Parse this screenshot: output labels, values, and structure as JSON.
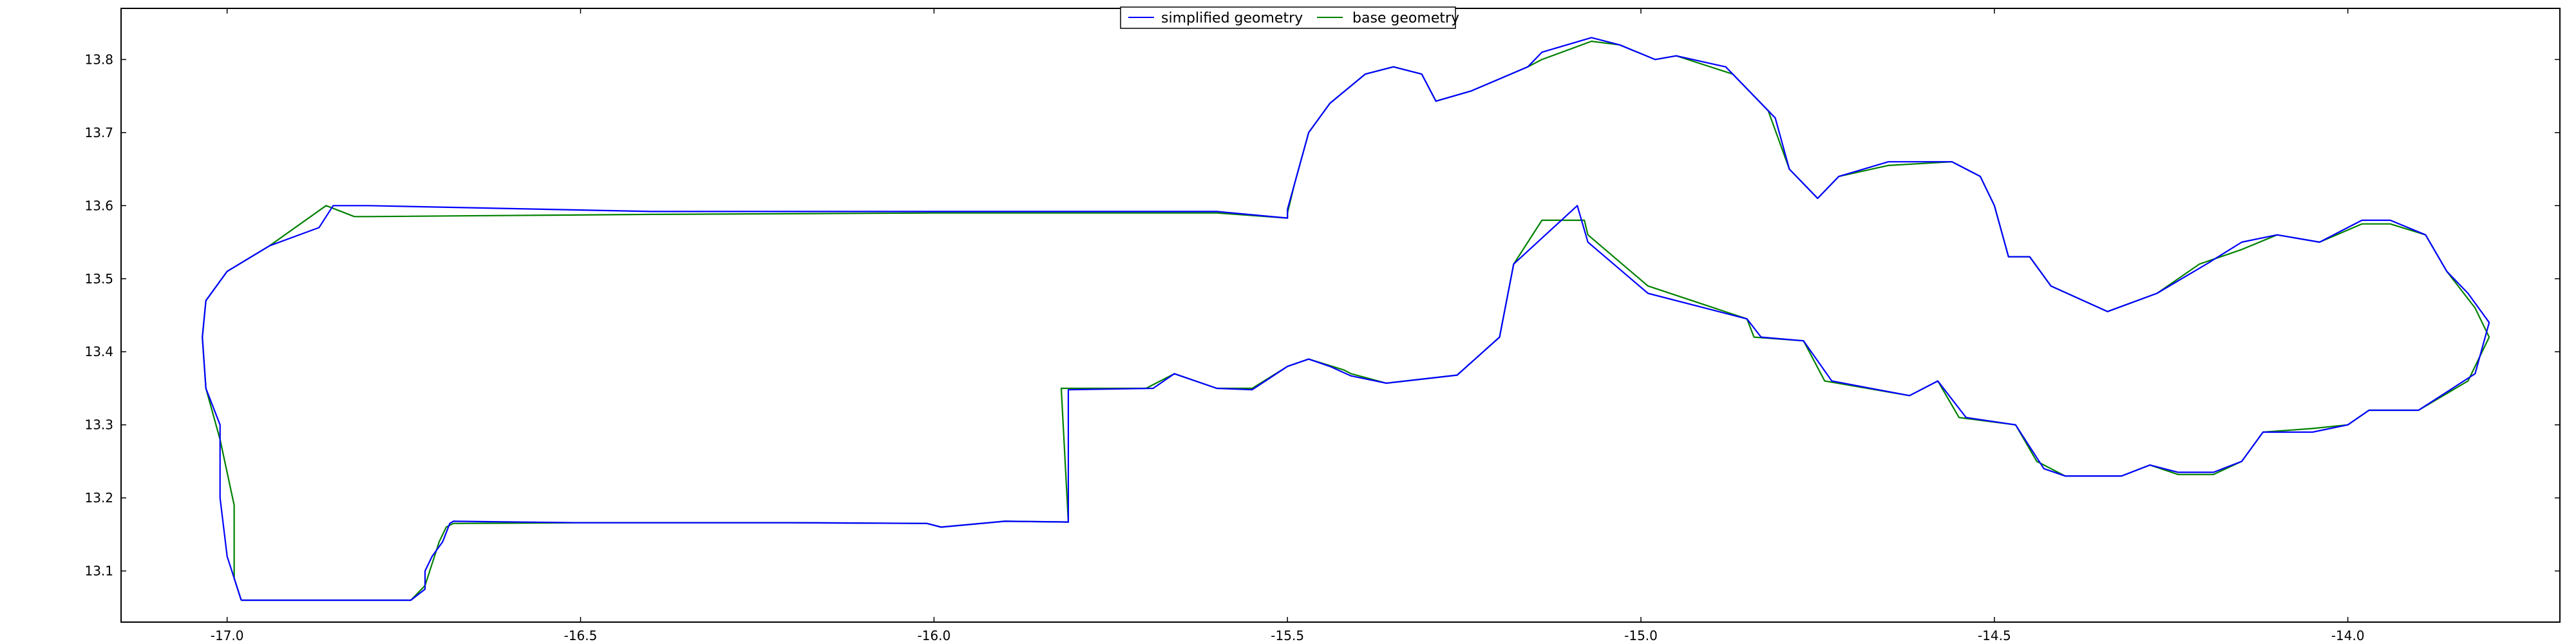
{
  "chart_data": {
    "type": "line",
    "title": "",
    "xlabel": "",
    "ylabel": "",
    "xlim": [
      -17.15,
      -13.7
    ],
    "ylim": [
      13.03,
      13.87
    ],
    "x_ticks": [
      -17.0,
      -16.5,
      -16.0,
      -15.5,
      -15.0,
      -14.5,
      -14.0
    ],
    "x_tick_labels": [
      "-17.0",
      "-16.5",
      "-16.0",
      "-15.5",
      "-15.0",
      "-14.5",
      "-14.0"
    ],
    "y_ticks": [
      13.1,
      13.2,
      13.3,
      13.4,
      13.5,
      13.6,
      13.7,
      13.8
    ],
    "y_tick_labels": [
      "13.1",
      "13.2",
      "13.3",
      "13.4",
      "13.5",
      "13.6",
      "13.7",
      "13.8"
    ],
    "grid": false,
    "legend_position": "top-center",
    "series": [
      {
        "name": "simplified geometry",
        "color": "#0000ff",
        "points": [
          [
            -16.98,
            13.06
          ],
          [
            -16.74,
            13.06
          ],
          [
            -16.72,
            13.075
          ],
          [
            -16.72,
            13.1
          ],
          [
            -16.71,
            13.12
          ],
          [
            -16.695,
            13.14
          ],
          [
            -16.685,
            13.165
          ],
          [
            -16.68,
            13.168
          ],
          [
            -16.5,
            13.166
          ],
          [
            -16.2,
            13.166
          ],
          [
            -16.01,
            13.165
          ],
          [
            -15.99,
            13.16
          ],
          [
            -15.9,
            13.168
          ],
          [
            -15.81,
            13.167
          ],
          [
            -15.81,
            13.348
          ],
          [
            -15.69,
            13.35
          ],
          [
            -15.66,
            13.37
          ],
          [
            -15.6,
            13.35
          ],
          [
            -15.55,
            13.348
          ],
          [
            -15.5,
            13.38
          ],
          [
            -15.47,
            13.39
          ],
          [
            -15.44,
            13.38
          ],
          [
            -15.41,
            13.367
          ],
          [
            -15.36,
            13.357
          ],
          [
            -15.26,
            13.368
          ],
          [
            -15.2,
            13.42
          ],
          [
            -15.18,
            13.52
          ],
          [
            -15.09,
            13.6
          ],
          [
            -15.075,
            13.55
          ],
          [
            -14.99,
            13.48
          ],
          [
            -14.85,
            13.445
          ],
          [
            -14.83,
            13.42
          ],
          [
            -14.77,
            13.415
          ],
          [
            -14.73,
            13.36
          ],
          [
            -14.62,
            13.34
          ],
          [
            -14.58,
            13.36
          ],
          [
            -14.54,
            13.31
          ],
          [
            -14.47,
            13.3
          ],
          [
            -14.43,
            13.24
          ],
          [
            -14.4,
            13.23
          ],
          [
            -14.32,
            13.23
          ],
          [
            -14.28,
            13.245
          ],
          [
            -14.24,
            13.235
          ],
          [
            -14.19,
            13.235
          ],
          [
            -14.15,
            13.25
          ],
          [
            -14.12,
            13.29
          ],
          [
            -14.05,
            13.29
          ],
          [
            -14.0,
            13.3
          ],
          [
            -13.97,
            13.32
          ],
          [
            -13.9,
            13.32
          ],
          [
            -13.82,
            13.37
          ],
          [
            -13.8,
            13.44
          ],
          [
            -13.83,
            13.48
          ],
          [
            -13.86,
            13.51
          ],
          [
            -13.89,
            13.56
          ],
          [
            -13.94,
            13.58
          ],
          [
            -13.98,
            13.58
          ],
          [
            -14.04,
            13.55
          ],
          [
            -14.1,
            13.56
          ],
          [
            -14.15,
            13.55
          ],
          [
            -14.2,
            13.52
          ],
          [
            -14.27,
            13.48
          ],
          [
            -14.34,
            13.455
          ],
          [
            -14.42,
            13.49
          ],
          [
            -14.45,
            13.53
          ],
          [
            -14.48,
            13.53
          ],
          [
            -14.5,
            13.6
          ],
          [
            -14.52,
            13.64
          ],
          [
            -14.56,
            13.66
          ],
          [
            -14.65,
            13.66
          ],
          [
            -14.72,
            13.64
          ],
          [
            -14.75,
            13.61
          ],
          [
            -14.79,
            13.65
          ],
          [
            -14.81,
            13.72
          ],
          [
            -14.88,
            13.79
          ],
          [
            -14.95,
            13.805
          ],
          [
            -14.98,
            13.8
          ],
          [
            -15.03,
            13.82
          ],
          [
            -15.07,
            13.83
          ],
          [
            -15.14,
            13.81
          ],
          [
            -15.16,
            13.79
          ],
          [
            -15.24,
            13.757
          ],
          [
            -15.29,
            13.743
          ],
          [
            -15.31,
            13.78
          ],
          [
            -15.35,
            13.79
          ],
          [
            -15.39,
            13.78
          ],
          [
            -15.44,
            13.74
          ],
          [
            -15.47,
            13.7
          ],
          [
            -15.49,
            13.63
          ],
          [
            -15.5,
            13.595
          ],
          [
            -15.5,
            13.583
          ],
          [
            -15.6,
            13.592
          ],
          [
            -16.0,
            13.592
          ],
          [
            -16.4,
            13.592
          ],
          [
            -16.8,
            13.6
          ],
          [
            -16.85,
            13.6
          ],
          [
            -16.87,
            13.57
          ],
          [
            -16.94,
            13.545
          ],
          [
            -17.0,
            13.51
          ],
          [
            -17.03,
            13.47
          ],
          [
            -17.035,
            13.42
          ],
          [
            -17.03,
            13.35
          ],
          [
            -17.01,
            13.3
          ],
          [
            -17.01,
            13.2
          ],
          [
            -17.0,
            13.12
          ],
          [
            -16.98,
            13.06
          ]
        ]
      },
      {
        "name": "base geometry",
        "color": "#008000",
        "points": [
          [
            -16.98,
            13.06
          ],
          [
            -16.74,
            13.06
          ],
          [
            -16.72,
            13.08
          ],
          [
            -16.71,
            13.11
          ],
          [
            -16.7,
            13.14
          ],
          [
            -16.69,
            13.16
          ],
          [
            -16.68,
            13.165
          ],
          [
            -16.5,
            13.166
          ],
          [
            -16.2,
            13.166
          ],
          [
            -16.01,
            13.165
          ],
          [
            -15.99,
            13.16
          ],
          [
            -15.9,
            13.168
          ],
          [
            -15.81,
            13.167
          ],
          [
            -15.82,
            13.35
          ],
          [
            -15.7,
            13.35
          ],
          [
            -15.66,
            13.37
          ],
          [
            -15.6,
            13.35
          ],
          [
            -15.55,
            13.35
          ],
          [
            -15.5,
            13.38
          ],
          [
            -15.47,
            13.39
          ],
          [
            -15.42,
            13.375
          ],
          [
            -15.41,
            13.37
          ],
          [
            -15.36,
            13.357
          ],
          [
            -15.26,
            13.368
          ],
          [
            -15.2,
            13.42
          ],
          [
            -15.18,
            13.52
          ],
          [
            -15.14,
            13.58
          ],
          [
            -15.08,
            13.58
          ],
          [
            -15.075,
            13.56
          ],
          [
            -14.99,
            13.49
          ],
          [
            -14.85,
            13.445
          ],
          [
            -14.84,
            13.42
          ],
          [
            -14.77,
            13.415
          ],
          [
            -14.74,
            13.36
          ],
          [
            -14.62,
            13.34
          ],
          [
            -14.58,
            13.36
          ],
          [
            -14.55,
            13.31
          ],
          [
            -14.47,
            13.3
          ],
          [
            -14.44,
            13.25
          ],
          [
            -14.4,
            13.23
          ],
          [
            -14.32,
            13.23
          ],
          [
            -14.28,
            13.245
          ],
          [
            -14.24,
            13.232
          ],
          [
            -14.19,
            13.232
          ],
          [
            -14.15,
            13.25
          ],
          [
            -14.12,
            13.29
          ],
          [
            -14.05,
            13.295
          ],
          [
            -14.0,
            13.3
          ],
          [
            -13.97,
            13.32
          ],
          [
            -13.9,
            13.32
          ],
          [
            -13.83,
            13.36
          ],
          [
            -13.8,
            13.42
          ],
          [
            -13.82,
            13.46
          ],
          [
            -13.86,
            13.51
          ],
          [
            -13.89,
            13.56
          ],
          [
            -13.94,
            13.575
          ],
          [
            -13.98,
            13.575
          ],
          [
            -14.04,
            13.55
          ],
          [
            -14.1,
            13.56
          ],
          [
            -14.15,
            13.54
          ],
          [
            -14.21,
            13.52
          ],
          [
            -14.27,
            13.48
          ],
          [
            -14.34,
            13.455
          ],
          [
            -14.42,
            13.49
          ],
          [
            -14.45,
            13.53
          ],
          [
            -14.48,
            13.53
          ],
          [
            -14.5,
            13.6
          ],
          [
            -14.52,
            13.64
          ],
          [
            -14.56,
            13.66
          ],
          [
            -14.65,
            13.655
          ],
          [
            -14.72,
            13.64
          ],
          [
            -14.75,
            13.61
          ],
          [
            -14.79,
            13.65
          ],
          [
            -14.82,
            13.73
          ],
          [
            -14.87,
            13.78
          ],
          [
            -14.95,
            13.805
          ],
          [
            -14.98,
            13.8
          ],
          [
            -15.03,
            13.82
          ],
          [
            -15.07,
            13.825
          ],
          [
            -15.14,
            13.8
          ],
          [
            -15.16,
            13.79
          ],
          [
            -15.24,
            13.757
          ],
          [
            -15.29,
            13.743
          ],
          [
            -15.31,
            13.78
          ],
          [
            -15.35,
            13.79
          ],
          [
            -15.39,
            13.78
          ],
          [
            -15.44,
            13.74
          ],
          [
            -15.47,
            13.7
          ],
          [
            -15.49,
            13.63
          ],
          [
            -15.5,
            13.59
          ],
          [
            -15.5,
            13.583
          ],
          [
            -15.6,
            13.59
          ],
          [
            -16.0,
            13.59
          ],
          [
            -16.4,
            13.588
          ],
          [
            -16.8,
            13.585
          ],
          [
            -16.82,
            13.585
          ],
          [
            -16.86,
            13.6
          ],
          [
            -16.94,
            13.545
          ],
          [
            -17.0,
            13.51
          ],
          [
            -17.03,
            13.47
          ],
          [
            -17.035,
            13.42
          ],
          [
            -17.03,
            13.35
          ],
          [
            -17.01,
            13.28
          ],
          [
            -16.99,
            13.19
          ],
          [
            -16.99,
            13.09
          ],
          [
            -16.98,
            13.06
          ]
        ]
      }
    ]
  }
}
